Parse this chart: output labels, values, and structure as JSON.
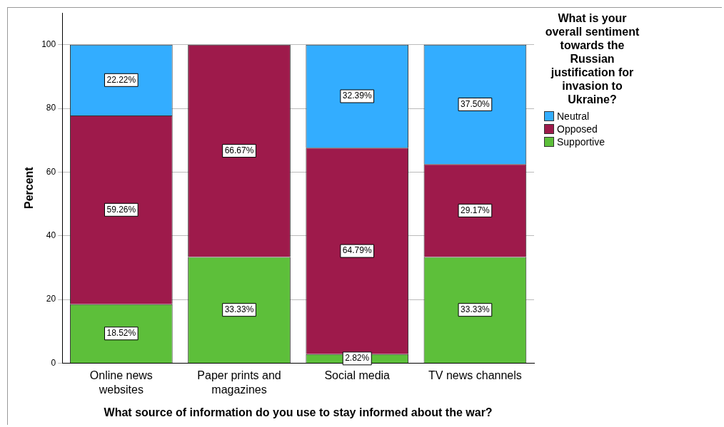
{
  "chart_data": {
    "type": "bar",
    "stacked": true,
    "xlabel": "What source of information do you use to stay informed about the war?",
    "ylabel": "Percent",
    "legend_title": "What is your overall sentiment towards the Russian justification for invasion to Ukraine?",
    "legend": "top right",
    "grid": "y",
    "categories": [
      "Online news websites",
      "Paper prints and magazines",
      "Social media",
      "TV news channels"
    ],
    "ylim": [
      0,
      110
    ],
    "yticks": [
      0,
      20,
      40,
      60,
      80,
      100
    ],
    "series": [
      {
        "name": "Supportive",
        "color": "#5dbf3a",
        "values": [
          18.52,
          33.33,
          2.82,
          33.33
        ],
        "value_labels": [
          "18.52%",
          "33.33%",
          "2.82%",
          "33.33%"
        ]
      },
      {
        "name": "Opposed",
        "color": "#9e1a4b",
        "values": [
          59.26,
          66.67,
          64.79,
          29.17
        ],
        "value_labels": [
          "59.26%",
          "66.67%",
          "64.79%",
          "29.17%"
        ]
      },
      {
        "name": "Neutral",
        "color": "#33adff",
        "values": [
          22.22,
          null,
          32.39,
          37.5
        ],
        "value_labels": [
          "22.22%",
          null,
          "32.39%",
          "37.50%"
        ]
      }
    ]
  }
}
